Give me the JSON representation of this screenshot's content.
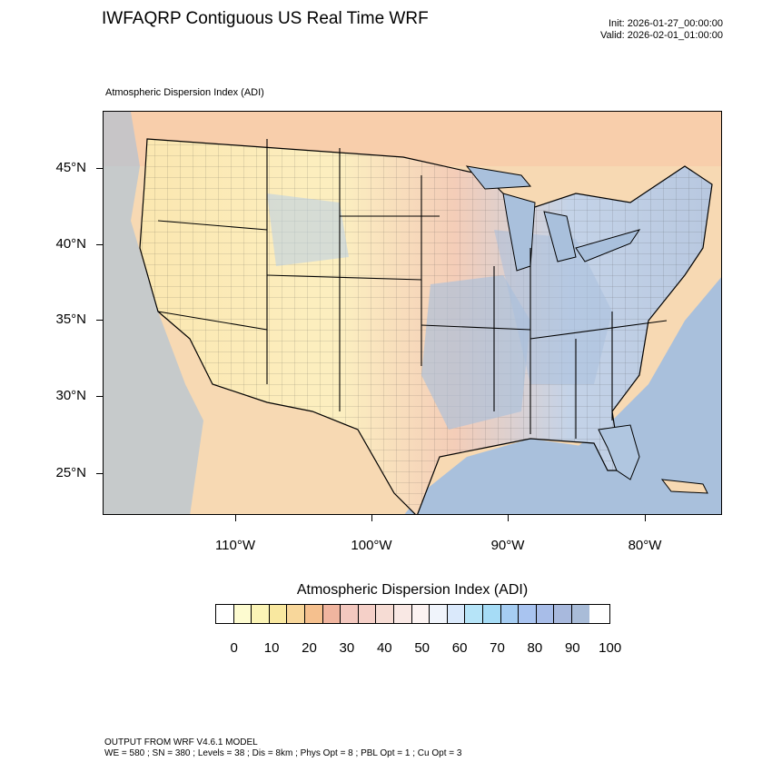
{
  "header": {
    "title": "IWFAQRP Contiguous US Real Time WRF",
    "init": "Init: 2026-01-27_00:00:00",
    "valid": "Valid: 2026-02-01_01:00:00"
  },
  "map": {
    "subtitle": "Atmospheric Dispersion Index   (ADI)",
    "lat_labels": [
      "45°N",
      "40°N",
      "35°N",
      "30°N",
      "25°N"
    ],
    "lon_labels": [
      "110°W",
      "100°W",
      "90°W",
      "80°W"
    ],
    "colors": {
      "water": "#a9c0dc",
      "low": "#fdf8c0",
      "mid": "#f4c5b0",
      "high": "#adc6e6"
    }
  },
  "colorbar": {
    "title": "Atmospheric Dispersion Index  (ADI)",
    "labels": [
      "0",
      "10",
      "20",
      "30",
      "40",
      "50",
      "60",
      "70",
      "80",
      "90",
      "100"
    ],
    "colors": [
      "#ffffff",
      "#fdfbd0",
      "#fbf4b6",
      "#f9e8a0",
      "#f8d79b",
      "#f5c08e",
      "#f0b59f",
      "#f3c8bf",
      "#f5d0c8",
      "#f6dcd4",
      "#f9e8e4",
      "#fcf3f2",
      "#f0f4fb",
      "#dae9fb",
      "#b6e4f8",
      "#a6dcf6",
      "#a6cdf2",
      "#a9c4f0",
      "#a8bde8",
      "#a8b9dd",
      "#a9bcd8"
    ]
  },
  "footer": {
    "line1": "OUTPUT FROM WRF V4.6.1 MODEL",
    "line2": "WE = 580 ; SN = 380 ; Levels = 38 ; Dis = 8km ; Phys Opt = 8 ; PBL Opt = 1 ; Cu Opt = 3"
  }
}
